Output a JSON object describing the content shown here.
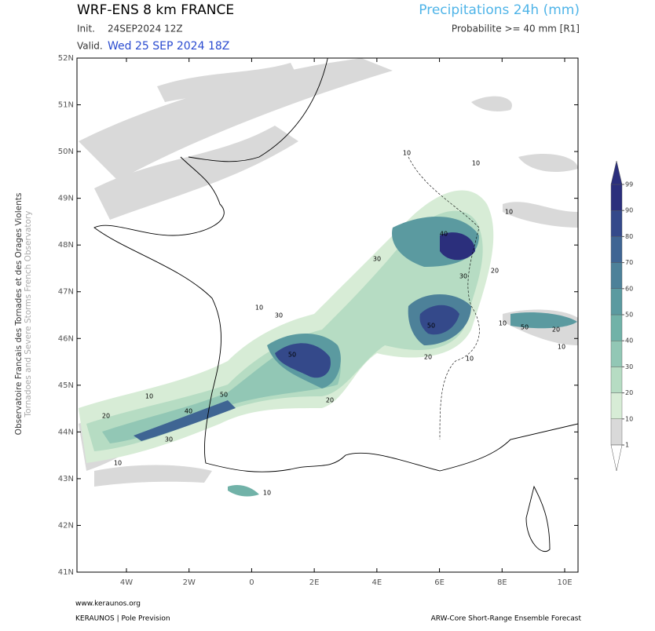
{
  "header": {
    "model": "WRF-ENS 8 km FRANCE",
    "product": "Precipitations 24h (mm)",
    "init_label": "Init.",
    "init": "24SEP2024 12Z",
    "valid_label": "Valid.",
    "valid": "Wed 25 SEP 2024 18Z",
    "threshold": "Probabilite >= 40 mm [R1]"
  },
  "map": {
    "lat_labels": [
      "52N",
      "51N",
      "50N",
      "49N",
      "48N",
      "47N",
      "46N",
      "45N",
      "44N",
      "43N",
      "42N",
      "41N"
    ],
    "lon_labels": [
      "4W",
      "2W",
      "0",
      "2E",
      "4E",
      "6E",
      "8E",
      "10E"
    ],
    "contour_labels": [
      10,
      20,
      30,
      40,
      50,
      10,
      30,
      10,
      20,
      50,
      10,
      30,
      40,
      10,
      20,
      10,
      50,
      10,
      20,
      10,
      30,
      10,
      50,
      20,
      10
    ]
  },
  "colorbar": {
    "ticks": [
      1,
      10,
      20,
      30,
      40,
      50,
      60,
      70,
      80,
      90,
      99
    ],
    "colors": [
      "#d9d9d9",
      "#d7ecd6",
      "#b6dcc3",
      "#92c7b5",
      "#71b2a8",
      "#5b9aa0",
      "#4d8199",
      "#3f6593",
      "#34498a",
      "#2b2f7c"
    ]
  },
  "side": {
    "french": "Observatoire Francais des Tornades et des Orages Violents",
    "english": "Tornadoes and Severe Storms French Observatory"
  },
  "footer": {
    "url": "www.keraunos.org",
    "left": "KERAUNOS | Pole Prevision",
    "right": "ARW-Core Short-Range Ensemble Forecast"
  }
}
